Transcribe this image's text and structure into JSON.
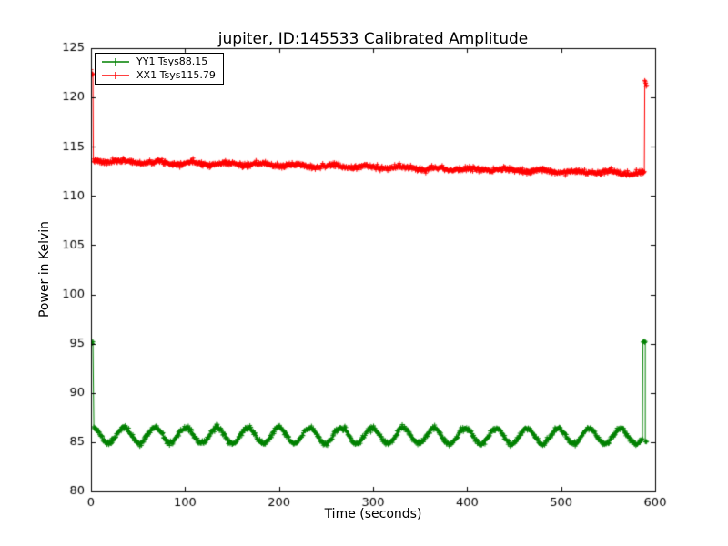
{
  "chart_data": {
    "type": "line",
    "title": "jupiter, ID:145533 Calibrated Amplitude",
    "xlabel": "Time (seconds)",
    "ylabel": "Power in Kelvin",
    "xlim": [
      0,
      600
    ],
    "ylim": [
      80,
      125
    ],
    "xticks": [
      0,
      100,
      200,
      300,
      400,
      500,
      600
    ],
    "yticks": [
      80,
      85,
      90,
      95,
      100,
      105,
      110,
      115,
      120,
      125
    ],
    "grid": false,
    "legend": {
      "position": "upper left",
      "entries": [
        {
          "label": "YY1 Tsys88.15",
          "color": "#008000"
        },
        {
          "label": "XX1 Tsys115.79",
          "color": "#ff0000"
        }
      ]
    },
    "series": [
      {
        "name": "YY1 Tsys88.15",
        "color": "#008000",
        "marker": "+",
        "sampled_points": [
          [
            0,
            95.3
          ],
          [
            2,
            95.4
          ],
          [
            5,
            85.6
          ],
          [
            30,
            85.1
          ],
          [
            60,
            85.9
          ],
          [
            90,
            85.3
          ],
          [
            120,
            86.0
          ],
          [
            150,
            85.2
          ],
          [
            180,
            86.1
          ],
          [
            210,
            85.3
          ],
          [
            240,
            86.2
          ],
          [
            270,
            85.5
          ],
          [
            300,
            86.3
          ],
          [
            330,
            85.4
          ],
          [
            360,
            86.2
          ],
          [
            390,
            85.5
          ],
          [
            420,
            86.3
          ],
          [
            450,
            85.4
          ],
          [
            480,
            86.1
          ],
          [
            510,
            85.4
          ],
          [
            540,
            86.0
          ],
          [
            570,
            85.6
          ],
          [
            586,
            85.3
          ],
          [
            588,
            95.2
          ],
          [
            590,
            85.1
          ]
        ],
        "synthesis": {
          "seed": 11,
          "dt": 0.5,
          "segments": [
            {
              "kind": "flat",
              "t0": 0,
              "t1": 2,
              "value": 95.3,
              "noise_sd": 0.12
            },
            {
              "kind": "trend",
              "t0": 3,
              "t1": 586.5,
              "v0": 85.7,
              "v1": 85.6,
              "osc_amp": 0.8,
              "osc_period": 33,
              "osc_phase": 1.2,
              "noise_sd": 0.12
            },
            {
              "kind": "flat",
              "t0": 587,
              "t1": 589.5,
              "value": 95.2,
              "noise_sd": 0.12
            },
            {
              "kind": "flat",
              "t0": 589.5,
              "t1": 591,
              "value": 85.1,
              "noise_sd": 0.1
            }
          ]
        }
      },
      {
        "name": "XX1 Tsys115.79",
        "color": "#ff0000",
        "marker": "+",
        "sampled_points": [
          [
            0,
            122.4
          ],
          [
            2,
            122.3
          ],
          [
            5,
            113.6
          ],
          [
            50,
            113.4
          ],
          [
            100,
            113.3
          ],
          [
            150,
            113.2
          ],
          [
            200,
            113.1
          ],
          [
            250,
            113.0
          ],
          [
            300,
            112.9
          ],
          [
            350,
            112.8
          ],
          [
            400,
            112.7
          ],
          [
            450,
            112.6
          ],
          [
            500,
            112.5
          ],
          [
            550,
            112.4
          ],
          [
            586,
            112.3
          ],
          [
            588,
            121.5
          ],
          [
            590,
            121.4
          ]
        ],
        "synthesis": {
          "seed": 7,
          "dt": 0.5,
          "segments": [
            {
              "kind": "flat",
              "t0": 0,
              "t1": 2,
              "value": 122.4,
              "noise_sd": 0.15
            },
            {
              "kind": "trend",
              "t0": 2.5,
              "t1": 588.5,
              "v0": 113.55,
              "v1": 112.3,
              "osc_amp": 0.12,
              "osc_period": 37,
              "osc_phase": 2.0,
              "noise_sd": 0.12
            },
            {
              "kind": "flat",
              "t0": 589,
              "t1": 591,
              "value": 121.5,
              "noise_sd": 0.15
            }
          ]
        }
      }
    ]
  }
}
